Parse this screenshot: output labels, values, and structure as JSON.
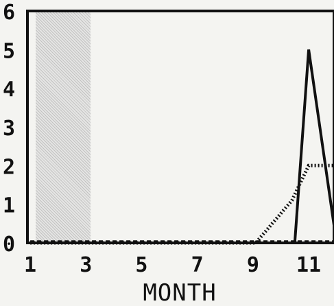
{
  "chart_data": {
    "type": "line",
    "title": "",
    "xlabel": "MONTH",
    "ylabel": "",
    "xlim": [
      1,
      12
    ],
    "ylim": [
      0,
      6
    ],
    "x_ticks": [
      "1",
      "3",
      "5",
      "7",
      "9",
      "11"
    ],
    "y_ticks": [
      "0",
      "1",
      "2",
      "3",
      "4",
      "5",
      "6"
    ],
    "grid": false,
    "series": [
      {
        "style": "solid",
        "color": "#111111",
        "points": [
          [
            1,
            0
          ],
          [
            10.5,
            0
          ],
          [
            11,
            5
          ],
          [
            12,
            0
          ]
        ]
      },
      {
        "style": "dotted",
        "color": "#111111",
        "points": [
          [
            1,
            0
          ],
          [
            9.1,
            0
          ],
          [
            10.4,
            1.1
          ],
          [
            11,
            2
          ],
          [
            12,
            2
          ]
        ]
      },
      {
        "style": "dashed",
        "color": "#111111",
        "points": [
          [
            1,
            0.05
          ],
          [
            12,
            0.05
          ]
        ]
      }
    ]
  }
}
